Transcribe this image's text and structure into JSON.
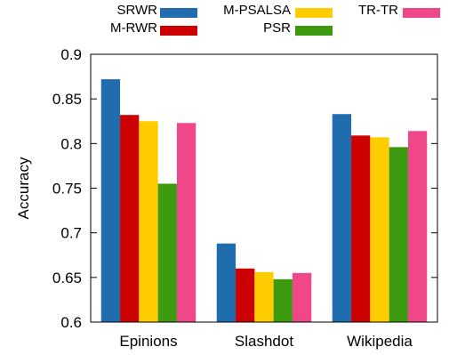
{
  "chart_data": {
    "type": "bar",
    "categories": [
      "Epinions",
      "Slashdot",
      "Wikipedia"
    ],
    "series": [
      {
        "name": "SRWR",
        "color": "#1f6cae",
        "values": [
          0.872,
          0.688,
          0.833
        ]
      },
      {
        "name": "M-RWR",
        "color": "#cc0000",
        "values": [
          0.832,
          0.66,
          0.809
        ]
      },
      {
        "name": "M-PSALSA",
        "color": "#ffcc00",
        "values": [
          0.825,
          0.656,
          0.807
        ]
      },
      {
        "name": "PSR",
        "color": "#3d9a0f",
        "values": [
          0.755,
          0.648,
          0.796
        ]
      },
      {
        "name": "TR-TR",
        "color": "#f0468a",
        "values": [
          0.823,
          0.655,
          0.814
        ]
      }
    ],
    "ylabel": "Accuracy",
    "xlabel": "",
    "ylim": [
      0.6,
      0.9
    ],
    "yticks": [
      "0.6",
      "0.65",
      "0.7",
      "0.75",
      "0.8",
      "0.85",
      "0.9"
    ],
    "grid": false,
    "legend_position": "top"
  }
}
